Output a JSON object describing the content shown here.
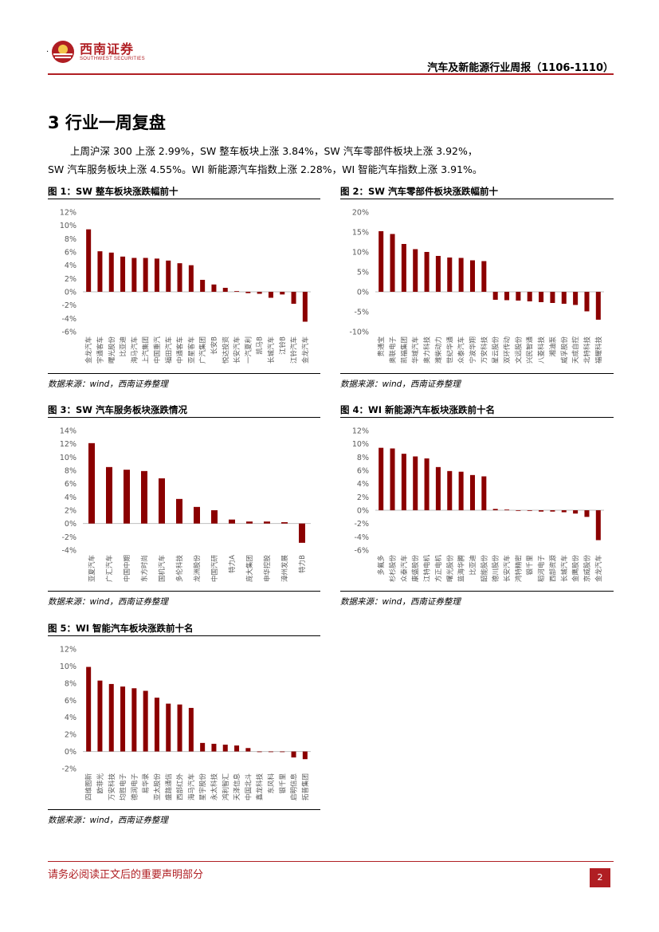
{
  "header": {
    "logo_cn": "西南证券",
    "logo_en": "SOUTHWEST SECURITIES",
    "report_title": "汽车及新能源行业周报（1106-1110）",
    "dot": "·"
  },
  "section": {
    "title": "3 行业一周复盘",
    "paragraph_line1": "上周沪深 300 上涨 2.99%，SW 整车板块上涨 3.84%，SW 汽车零部件板块上涨 3.92%，",
    "paragraph_line2": "SW 汽车服务板块上涨 4.55%。WI 新能源汽车指数上涨 2.28%，WI 智能汽车指数上涨 3.91%。"
  },
  "footer": {
    "disclaimer": "请务必阅读正文后的重要声明部分",
    "page_number": "2"
  },
  "colors": {
    "bar": "#8b0000",
    "brand": "#b01e23"
  },
  "chart_data": [
    {
      "id": "fig1",
      "type": "bar",
      "title": "图 1：SW 整车板块涨跌幅前十",
      "source": "数据来源：wind，西南证券整理",
      "ylim": [
        -6,
        12
      ],
      "yticks": [
        -6,
        -4,
        -2,
        0,
        2,
        4,
        6,
        8,
        10,
        12
      ],
      "categories": [
        "金龙汽车",
        "宇通客车",
        "曙光股份",
        "比亚迪",
        "海马汽车",
        "上汽集团",
        "中国重汽",
        "福田汽车",
        "中通客车",
        "亚星客车",
        "广汽集团",
        "长安B",
        "悦达投资",
        "长安汽车",
        "一汽夏利",
        "凯马B",
        "长城汽车",
        "江铃B",
        "江铃汽车",
        "金龙汽车"
      ],
      "values": [
        9.4,
        6.1,
        5.9,
        5.3,
        5.1,
        5.1,
        5.0,
        4.7,
        4.3,
        4.0,
        1.8,
        1.1,
        0.6,
        0.1,
        -0.2,
        -0.3,
        -0.9,
        -0.4,
        -1.8,
        -4.5
      ]
    },
    {
      "id": "fig2",
      "type": "bar",
      "title": "图 2：SW 汽车零部件板块涨跌幅前十",
      "source": "数据来源：wind，西南证券整理",
      "ylim": [
        -10,
        20
      ],
      "yticks": [
        -10,
        -5,
        0,
        5,
        10,
        15,
        20
      ],
      "categories": [
        "贵通宝",
        "奥联电子",
        "凯福集团",
        "华域汽车",
        "奥力科技",
        "潍柴动力",
        "世纪华通",
        "众泰汽车",
        "宁波华翔",
        "万安科技",
        "星云股份",
        "双环传动",
        "文远股份",
        "兴民智通",
        "八菱科技",
        "湘油泵",
        "威孚股份",
        "天成自控",
        "北特科技",
        "福耀科技"
      ],
      "values": [
        15.2,
        14.5,
        12.0,
        10.7,
        10.0,
        9.0,
        8.6,
        8.5,
        7.9,
        7.7,
        -2.0,
        -2.1,
        -2.2,
        -2.4,
        -2.6,
        -2.8,
        -3.0,
        -3.3,
        -4.9,
        -7.0
      ]
    },
    {
      "id": "fig3",
      "type": "bar",
      "title": "图 3：SW 汽车服务板块涨跌情况",
      "source": "数据来源：wind，西南证券整理",
      "ylim": [
        -4,
        14
      ],
      "yticks": [
        -4,
        -2,
        0,
        2,
        4,
        6,
        8,
        10,
        12,
        14
      ],
      "categories": [
        "亚夏汽车",
        "广汇汽车",
        "中国中期",
        "东方时尚",
        "国机汽车",
        "多伦科技",
        "龙洲股份",
        "中国汽研",
        "特力A",
        "庞大集团",
        "申华控股",
        "漳州发展",
        "特力B"
      ],
      "values": [
        12.1,
        8.5,
        8.1,
        7.9,
        6.8,
        3.7,
        2.5,
        2.0,
        0.6,
        0.3,
        0.3,
        0.2,
        -2.9
      ]
    },
    {
      "id": "fig4",
      "type": "bar",
      "title": "图 4：WI 新能源汽车板块涨跌前十名",
      "source": "数据来源：wind，西南证券整理",
      "ylim": [
        -6,
        12
      ],
      "yticks": [
        -6,
        -4,
        -2,
        0,
        2,
        4,
        6,
        8,
        10,
        12
      ],
      "categories": [
        "多氟多",
        "杉杉股份",
        "众泰汽车",
        "康盛股份",
        "江特电机",
        "方正电机",
        "曙光股份",
        "蓝海华腾",
        "比亚迪",
        "韶能股份",
        "德川股份",
        "长安汽车",
        "鸿特精密",
        "银千里",
        "稻河电子",
        "西部资源",
        "长城汽车",
        "金鹰股份",
        "京威股份",
        "金龙汽车"
      ],
      "values": [
        9.4,
        9.3,
        8.5,
        8.1,
        7.8,
        6.5,
        5.9,
        5.8,
        5.3,
        5.1,
        0.2,
        0.1,
        0.0,
        0.0,
        -0.2,
        -0.2,
        -0.3,
        -0.5,
        -1.0,
        -4.5
      ]
    },
    {
      "id": "fig5",
      "type": "bar",
      "title": "图 5：WI 智能汽车板块涨跌前十名",
      "source": "数据来源：wind，西南证券整理",
      "ylim": [
        -2,
        12
      ],
      "yticks": [
        -2,
        0,
        2,
        4,
        6,
        8,
        10,
        12
      ],
      "categories": [
        "四维图新",
        "欧菲光",
        "万安科技",
        "均胜电子",
        "德润电子",
        "易华录",
        "亚太股份",
        "盛路通信",
        "西部红外",
        "海马汽车",
        "星宇股份",
        "永太科技",
        "鸿利智汇",
        "天泽信息",
        "中国北斗",
        "鑫龙科技",
        "东风科",
        "银千里",
        "启明信息",
        "拓普集团"
      ],
      "values": [
        9.9,
        8.3,
        7.9,
        7.6,
        7.4,
        7.1,
        6.3,
        5.6,
        5.5,
        5.1,
        1.0,
        0.9,
        0.8,
        0.7,
        0.4,
        0.0,
        0.0,
        0.0,
        -0.7,
        -0.9
      ]
    }
  ]
}
